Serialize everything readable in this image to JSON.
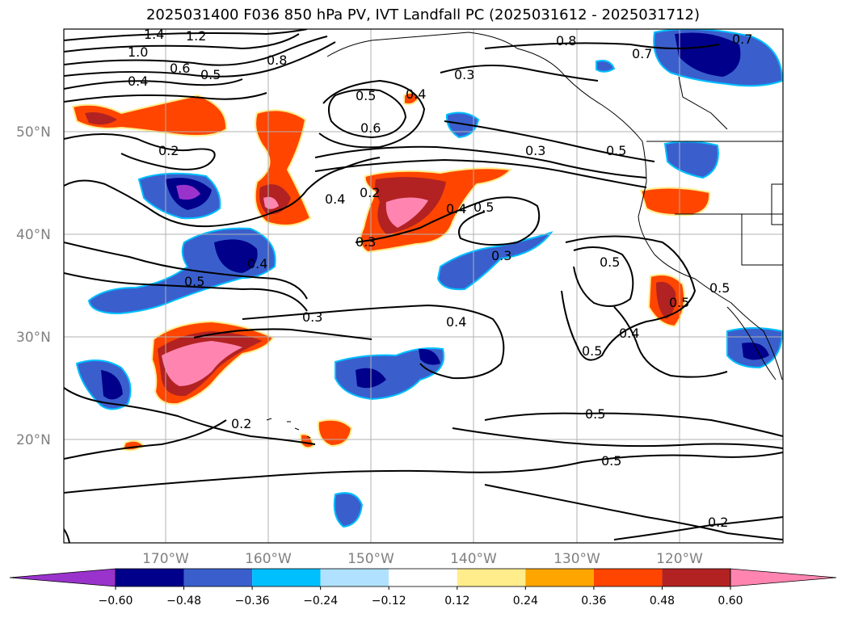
{
  "title": "2025031400 F036 850 hPa PV, IVT Landfall PC (2025031612 - 2025031712)",
  "lat_labels": [
    "50°N",
    "40°N",
    "30°N",
    "20°N"
  ],
  "lon_labels": [
    "170°W",
    "160°W",
    "150°W",
    "140°W",
    "130°W",
    "120°W"
  ],
  "contour_labels": [
    "1.4",
    "1.2",
    "1.0",
    "0.6",
    "0.5",
    "0.4",
    "0.8",
    "0.3",
    "0.5",
    "0.4",
    "0.6",
    "0.8",
    "0.7",
    "0.7",
    "0.2",
    "0.2",
    "0.4",
    "0.5",
    "0.3",
    "0.3",
    "0.5",
    "0.4",
    "0.5",
    "0.3",
    "0.4",
    "0.5",
    "0.4",
    "0.5",
    "0.5",
    "0.4",
    "0.5",
    "0.2",
    "0.3",
    "0.2",
    "0.5",
    "0.5"
  ],
  "colorbar": {
    "colors": [
      "#9933cc",
      "#00008b",
      "#3a5fcd",
      "#00bfff",
      "#b0e2ff",
      "#ffffff",
      "#ffec8b",
      "#ffa500",
      "#ff4500",
      "#b22222",
      "#ff85b0"
    ],
    "tick_labels": [
      "−0.60",
      "−0.48",
      "−0.36",
      "−0.24",
      "−0.12",
      "0.12",
      "0.24",
      "0.36",
      "0.48",
      "0.60"
    ]
  },
  "colors": {
    "coast": "#000000",
    "grid": "#b0b0b0",
    "contour": "#000000"
  }
}
